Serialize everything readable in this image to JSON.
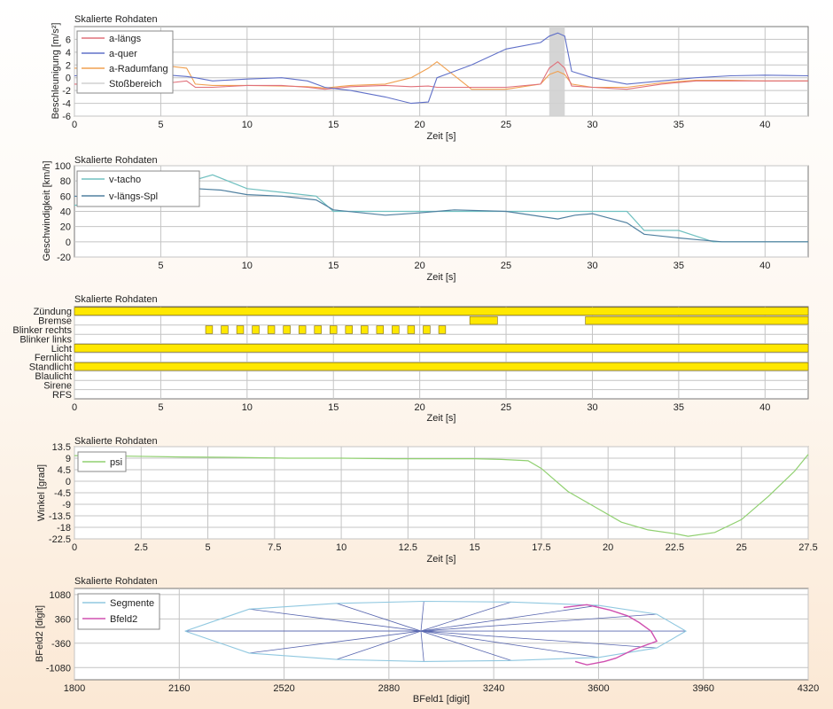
{
  "chart_data": [
    {
      "type": "line",
      "title": "Skalierte Rohdaten",
      "xlabel": "Zeit [s]",
      "ylabel": "Beschleunigung [m/s²]",
      "xlim": [
        0,
        42.5
      ],
      "ylim": [
        -6,
        8
      ],
      "xticks": [
        0,
        5,
        10,
        15,
        20,
        25,
        30,
        35,
        40
      ],
      "yticks": [
        -6,
        -4,
        -2,
        0,
        2,
        4,
        6
      ],
      "grid": true,
      "legend": "top-left",
      "shaded_x": [
        27.5,
        28.4
      ],
      "series": [
        {
          "name": "a-längs",
          "color": "#e0707a",
          "x": [
            0,
            2,
            4,
            5.5,
            6.5,
            7,
            8,
            10,
            12,
            13.5,
            14.5,
            16,
            18,
            19.5,
            20.5,
            21,
            23,
            25,
            27,
            27.5,
            28,
            28.4,
            28.8,
            30,
            32,
            34,
            36,
            38,
            40,
            42.5
          ],
          "y": [
            -1,
            -1,
            -1,
            -0.8,
            -0.5,
            -1.5,
            -1.5,
            -1.2,
            -1.2,
            -1.5,
            -1.8,
            -1.4,
            -1.2,
            -1.4,
            -1.3,
            -1.5,
            -1.5,
            -1.5,
            -1,
            1.5,
            2.5,
            1.5,
            -1.3,
            -1.5,
            -1.8,
            -1,
            -0.5,
            -0.5,
            -0.5,
            -0.5
          ]
        },
        {
          "name": "a-quer",
          "color": "#6070c8",
          "x": [
            0,
            2,
            4,
            5.5,
            6.5,
            7,
            8,
            10,
            12,
            13.5,
            14.5,
            16,
            18,
            19.5,
            20.5,
            21,
            23,
            25,
            27,
            27.5,
            28,
            28.4,
            28.8,
            30,
            32,
            34,
            36,
            38,
            40,
            42.5
          ],
          "y": [
            0.3,
            0.5,
            0.5,
            0.4,
            0.2,
            0,
            -0.5,
            -0.2,
            0,
            -0.5,
            -1.5,
            -2,
            -3,
            -4,
            -3.8,
            0,
            2,
            4.5,
            5.5,
            6.5,
            7,
            6.5,
            1,
            0,
            -1,
            -0.5,
            0,
            0.3,
            0.4,
            0.3
          ]
        },
        {
          "name": "a-Radumfang",
          "color": "#f0a050",
          "x": [
            0,
            2,
            4,
            5.5,
            6.5,
            7,
            8,
            10,
            12,
            13.5,
            14.5,
            16,
            18,
            19.5,
            20.5,
            21,
            23,
            25,
            27,
            27.5,
            28,
            28.4,
            28.8,
            30,
            32,
            34,
            36,
            38,
            40,
            42.5
          ],
          "y": [
            1.5,
            1.5,
            1.5,
            1.8,
            1.5,
            -1,
            -1.2,
            -1.2,
            -1.3,
            -1.4,
            -1.6,
            -1.2,
            -1,
            0,
            1.5,
            2.5,
            -1.8,
            -1.8,
            -1,
            0.5,
            1,
            0.5,
            -1,
            -1.5,
            -1.5,
            -0.8,
            -0.4,
            -0.4,
            -0.5,
            -0.5
          ]
        },
        {
          "name": "Stoßbereich",
          "color": "#d0d0d0",
          "x": [],
          "y": []
        }
      ]
    },
    {
      "type": "line",
      "title": "Skalierte Rohdaten",
      "xlabel": "Zeit [s]",
      "ylabel": "Geschwindigkeit [km/h]",
      "xlim": [
        0,
        42.5
      ],
      "ylim": [
        -20,
        100
      ],
      "xticks": [
        5,
        10,
        15,
        20,
        25,
        30,
        35,
        40
      ],
      "yticks": [
        -20,
        0,
        20,
        40,
        60,
        80,
        100
      ],
      "grid": true,
      "legend": "top-left",
      "series": [
        {
          "name": "v-tacho",
          "color": "#70c0c0",
          "x": [
            0,
            3,
            5,
            6,
            8,
            10,
            12,
            14,
            15,
            18,
            20,
            22,
            25,
            28,
            30,
            32,
            33,
            35,
            37,
            42.5
          ],
          "y": [
            48,
            52,
            60,
            75,
            88,
            70,
            65,
            60,
            40,
            40,
            40,
            40,
            40,
            40,
            40,
            40,
            15,
            15,
            0,
            0
          ]
        },
        {
          "name": "v-längs-Spl",
          "color": "#5080a0",
          "x": [
            0,
            1,
            3,
            5,
            6,
            7,
            8.5,
            10,
            12,
            14,
            15,
            18,
            20,
            22,
            25,
            28,
            29,
            30,
            32,
            33,
            35,
            36,
            37.5,
            42.5
          ],
          "y": [
            60,
            58,
            57,
            62,
            68,
            70,
            68,
            62,
            60,
            55,
            42,
            35,
            38,
            42,
            40,
            30,
            35,
            37,
            25,
            10,
            5,
            3,
            0,
            0
          ]
        }
      ]
    },
    {
      "type": "bar",
      "title": "Skalierte Rohdaten",
      "xlabel": "Zeit [s]",
      "xlim": [
        0,
        42.5
      ],
      "xticks": [
        0,
        5,
        10,
        15,
        20,
        25,
        30,
        35,
        40
      ],
      "color": "#ffe800",
      "categories": [
        "Zündung",
        "Bremse",
        "Blinker rechts",
        "Blinker links",
        "Licht",
        "Fernlicht",
        "Standlicht",
        "Blaulicht",
        "Sirene",
        "RFS"
      ],
      "intervals": [
        [
          [
            0,
            42.5
          ]
        ],
        [
          [
            22.9,
            24.5
          ],
          [
            29.6,
            42.5
          ]
        ],
        [
          [
            7.6,
            8.0
          ],
          [
            8.5,
            8.9
          ],
          [
            9.4,
            9.8
          ],
          [
            10.3,
            10.7
          ],
          [
            11.2,
            11.6
          ],
          [
            12.1,
            12.5
          ],
          [
            13.0,
            13.4
          ],
          [
            13.9,
            14.3
          ],
          [
            14.8,
            15.2
          ],
          [
            15.7,
            16.1
          ],
          [
            16.6,
            17.0
          ],
          [
            17.5,
            17.9
          ],
          [
            18.4,
            18.8
          ],
          [
            19.3,
            19.7
          ],
          [
            20.2,
            20.6
          ],
          [
            21.1,
            21.5
          ]
        ],
        [],
        [
          [
            0,
            42.5
          ]
        ],
        [],
        [
          [
            0,
            42.5
          ]
        ],
        [],
        [],
        []
      ]
    },
    {
      "type": "line",
      "title": "Skalierte Rohdaten",
      "xlabel": "Zeit [s]",
      "ylabel": "Winkel [grad]",
      "xlim": [
        0,
        27.5
      ],
      "ylim": [
        -22.5,
        13.5
      ],
      "xticks": [
        0,
        2.5,
        5,
        7.5,
        10,
        12.5,
        15,
        17.5,
        20,
        22.5,
        25,
        27.5
      ],
      "xtick_labels": [
        "0",
        "2.5",
        "5",
        "7.5",
        "10",
        "12.5",
        "15",
        "17.5",
        "20",
        "22.5",
        "25",
        "27.5"
      ],
      "yticks": [
        -22.5,
        -18,
        -13.5,
        -9,
        -4.5,
        0,
        4.5,
        9,
        13.5
      ],
      "ytick_labels": [
        "-22.5",
        "-18",
        "-13.5",
        "-9",
        "-4.5",
        "0",
        "4.5",
        "9",
        "13.5"
      ],
      "grid": true,
      "legend": "top-left",
      "series": [
        {
          "name": "psi",
          "color": "#90d070",
          "x": [
            0,
            2,
            4,
            6,
            8,
            10,
            12,
            14,
            15,
            16,
            17,
            17.5,
            18.5,
            19.5,
            20.5,
            21.5,
            22.5,
            23,
            24,
            25,
            26,
            27,
            27.5
          ],
          "y": [
            10,
            9.8,
            9.5,
            9.3,
            9,
            9,
            8.8,
            8.8,
            8.8,
            8.5,
            8,
            5,
            -4,
            -10,
            -16,
            -19,
            -20.5,
            -21.5,
            -20,
            -15,
            -6,
            4,
            10.5
          ]
        }
      ]
    },
    {
      "type": "scatter",
      "title": "Skalierte Rohdaten",
      "xlabel": "BFeld1 [digit]",
      "ylabel": "BFeld2 [digit]",
      "xlim": [
        1800,
        4320
      ],
      "ylim": [
        -1440,
        1260
      ],
      "xticks": [
        1800,
        2160,
        2520,
        2880,
        3240,
        3600,
        3960,
        4320
      ],
      "yticks": [
        -1080,
        -360,
        360,
        1080
      ],
      "grid": true,
      "legend": "top-left",
      "series": [
        {
          "name": "Segmente",
          "color": "#90c8e0",
          "x": [
            2180,
            2400,
            2700,
            3000,
            3300,
            3600,
            3800,
            3900,
            3800,
            3600,
            3300,
            3000,
            2700,
            2400,
            2180
          ],
          "y": [
            0,
            650,
            820,
            880,
            860,
            760,
            500,
            0,
            -500,
            -780,
            -870,
            -900,
            -840,
            -650,
            0
          ]
        },
        {
          "name": "Bfeld2",
          "color": "#d050b0",
          "x": [
            3480,
            3560,
            3640,
            3700,
            3740,
            3780,
            3800,
            3720,
            3660,
            3620,
            3560,
            3520
          ],
          "y": [
            700,
            780,
            620,
            450,
            250,
            0,
            -300,
            -550,
            -800,
            -900,
            -1000,
            -900
          ]
        }
      ],
      "spokes_center": [
        2990,
        0
      ]
    }
  ]
}
